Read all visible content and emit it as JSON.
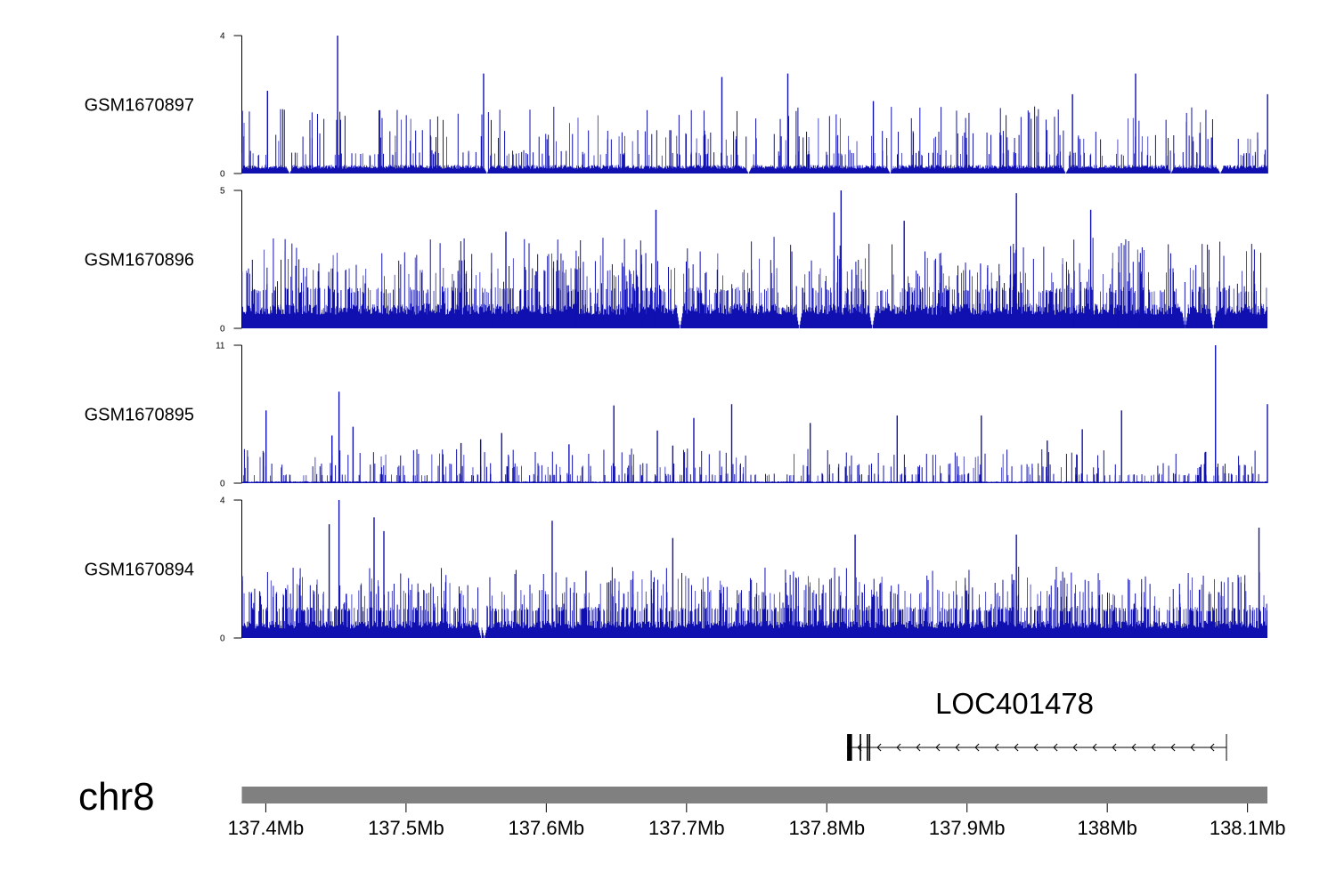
{
  "chart_data": {
    "type": "genome-browser",
    "colors": {
      "signal": "#1010b0",
      "axis": "#000000",
      "ideogram": "#808080"
    },
    "tracks": [
      {
        "name": "GSM1670897",
        "ymin": 0,
        "ymax": 4,
        "ticks": [
          "0",
          "4"
        ],
        "baseline": 0.25,
        "seed": 11,
        "levels": [
          0.6,
          1.1,
          1.7
        ],
        "level_probs": [
          0.06,
          0.02,
          0.006
        ],
        "peaks": [
          [
            137.4012,
            2.4
          ],
          [
            137.4512,
            4.0
          ],
          [
            137.5553,
            2.9
          ],
          [
            137.7252,
            2.8
          ],
          [
            137.7722,
            2.9
          ],
          [
            137.8332,
            2.1
          ],
          [
            137.9752,
            2.3
          ],
          [
            138.0202,
            2.9
          ],
          [
            138.1143,
            2.3
          ]
        ],
        "gaps": [
          137.4165,
          137.5575,
          137.7442,
          137.8452,
          137.9702,
          138.0452,
          138.0802
        ]
      },
      {
        "name": "GSM1670896",
        "ymin": 0,
        "ymax": 5,
        "ticks": [
          "0",
          "5"
        ],
        "baseline": 0.9,
        "seed": 23,
        "levels": [
          1.5,
          2.2,
          2.9
        ],
        "level_probs": [
          0.22,
          0.08,
          0.02
        ],
        "peaks": [
          [
            137.6782,
            4.3
          ],
          [
            137.8052,
            4.2
          ],
          [
            137.8102,
            5.0
          ],
          [
            137.9352,
            4.9
          ],
          [
            137.9882,
            4.3
          ],
          [
            137.8552,
            3.9
          ],
          [
            137.5712,
            3.5
          ]
        ],
        "gaps": [
          137.6952,
          137.7802,
          137.8322,
          138.0552,
          138.0752
        ]
      },
      {
        "name": "GSM1670895",
        "ymin": 0,
        "ymax": 11,
        "ticks": [
          "0",
          "11"
        ],
        "baseline": 0.15,
        "seed": 37,
        "levels": [
          0.7,
          1.4,
          2.4
        ],
        "level_probs": [
          0.07,
          0.025,
          0.008
        ],
        "peaks": [
          [
            137.4002,
            5.8
          ],
          [
            137.4472,
            3.8
          ],
          [
            137.4522,
            7.3
          ],
          [
            137.4622,
            4.5
          ],
          [
            137.5392,
            3.2
          ],
          [
            137.5532,
            3.5
          ],
          [
            137.5682,
            4.0
          ],
          [
            137.6162,
            3.1
          ],
          [
            137.6482,
            6.2
          ],
          [
            137.6792,
            4.2
          ],
          [
            137.6902,
            3.0
          ],
          [
            137.7052,
            5.2
          ],
          [
            137.7322,
            6.3
          ],
          [
            137.7882,
            4.8
          ],
          [
            137.8502,
            5.4
          ],
          [
            137.9102,
            5.4
          ],
          [
            137.9572,
            3.4
          ],
          [
            137.9822,
            4.3
          ],
          [
            138.0102,
            5.8
          ],
          [
            138.0702,
            2.5
          ],
          [
            138.0772,
            11.0
          ],
          [
            138.1142,
            6.3
          ]
        ],
        "gaps": []
      },
      {
        "name": "GSM1670894",
        "ymin": 0,
        "ymax": 4,
        "ticks": [
          "0",
          "4"
        ],
        "baseline": 0.5,
        "seed": 51,
        "levels": [
          0.9,
          1.4,
          1.8
        ],
        "level_probs": [
          0.3,
          0.1,
          0.03
        ],
        "peaks": [
          [
            137.4522,
            4.0
          ],
          [
            137.4452,
            3.3
          ],
          [
            137.4772,
            3.5
          ],
          [
            137.4842,
            3.1
          ],
          [
            137.6042,
            3.4
          ],
          [
            137.6902,
            2.9
          ],
          [
            137.8202,
            3.0
          ],
          [
            137.9352,
            3.0
          ],
          [
            138.1082,
            3.2
          ]
        ],
        "gaps": [
          137.5535,
          137.5555
        ]
      }
    ],
    "gene": {
      "name": "LOC401478",
      "strand": "-",
      "start": 137.8145,
      "end": 138.085,
      "exons": [
        [
          137.8145,
          137.818
        ],
        [
          137.8235,
          137.8245
        ],
        [
          137.8285,
          137.8292
        ],
        [
          137.83,
          137.831
        ]
      ]
    },
    "chromosome": "chr8",
    "xlim": [
      137.3829,
      138.1142
    ],
    "x_ticks": [
      {
        "value": 137.4,
        "label": "137.4Mb"
      },
      {
        "value": 137.5,
        "label": "137.5Mb"
      },
      {
        "value": 137.6,
        "label": "137.6Mb"
      },
      {
        "value": 137.7,
        "label": "137.7Mb"
      },
      {
        "value": 137.8,
        "label": "137.8Mb"
      },
      {
        "value": 137.9,
        "label": "137.9Mb"
      },
      {
        "value": 138.0,
        "label": "138Mb"
      },
      {
        "value": 138.1,
        "label": "138.1Mb"
      }
    ]
  }
}
